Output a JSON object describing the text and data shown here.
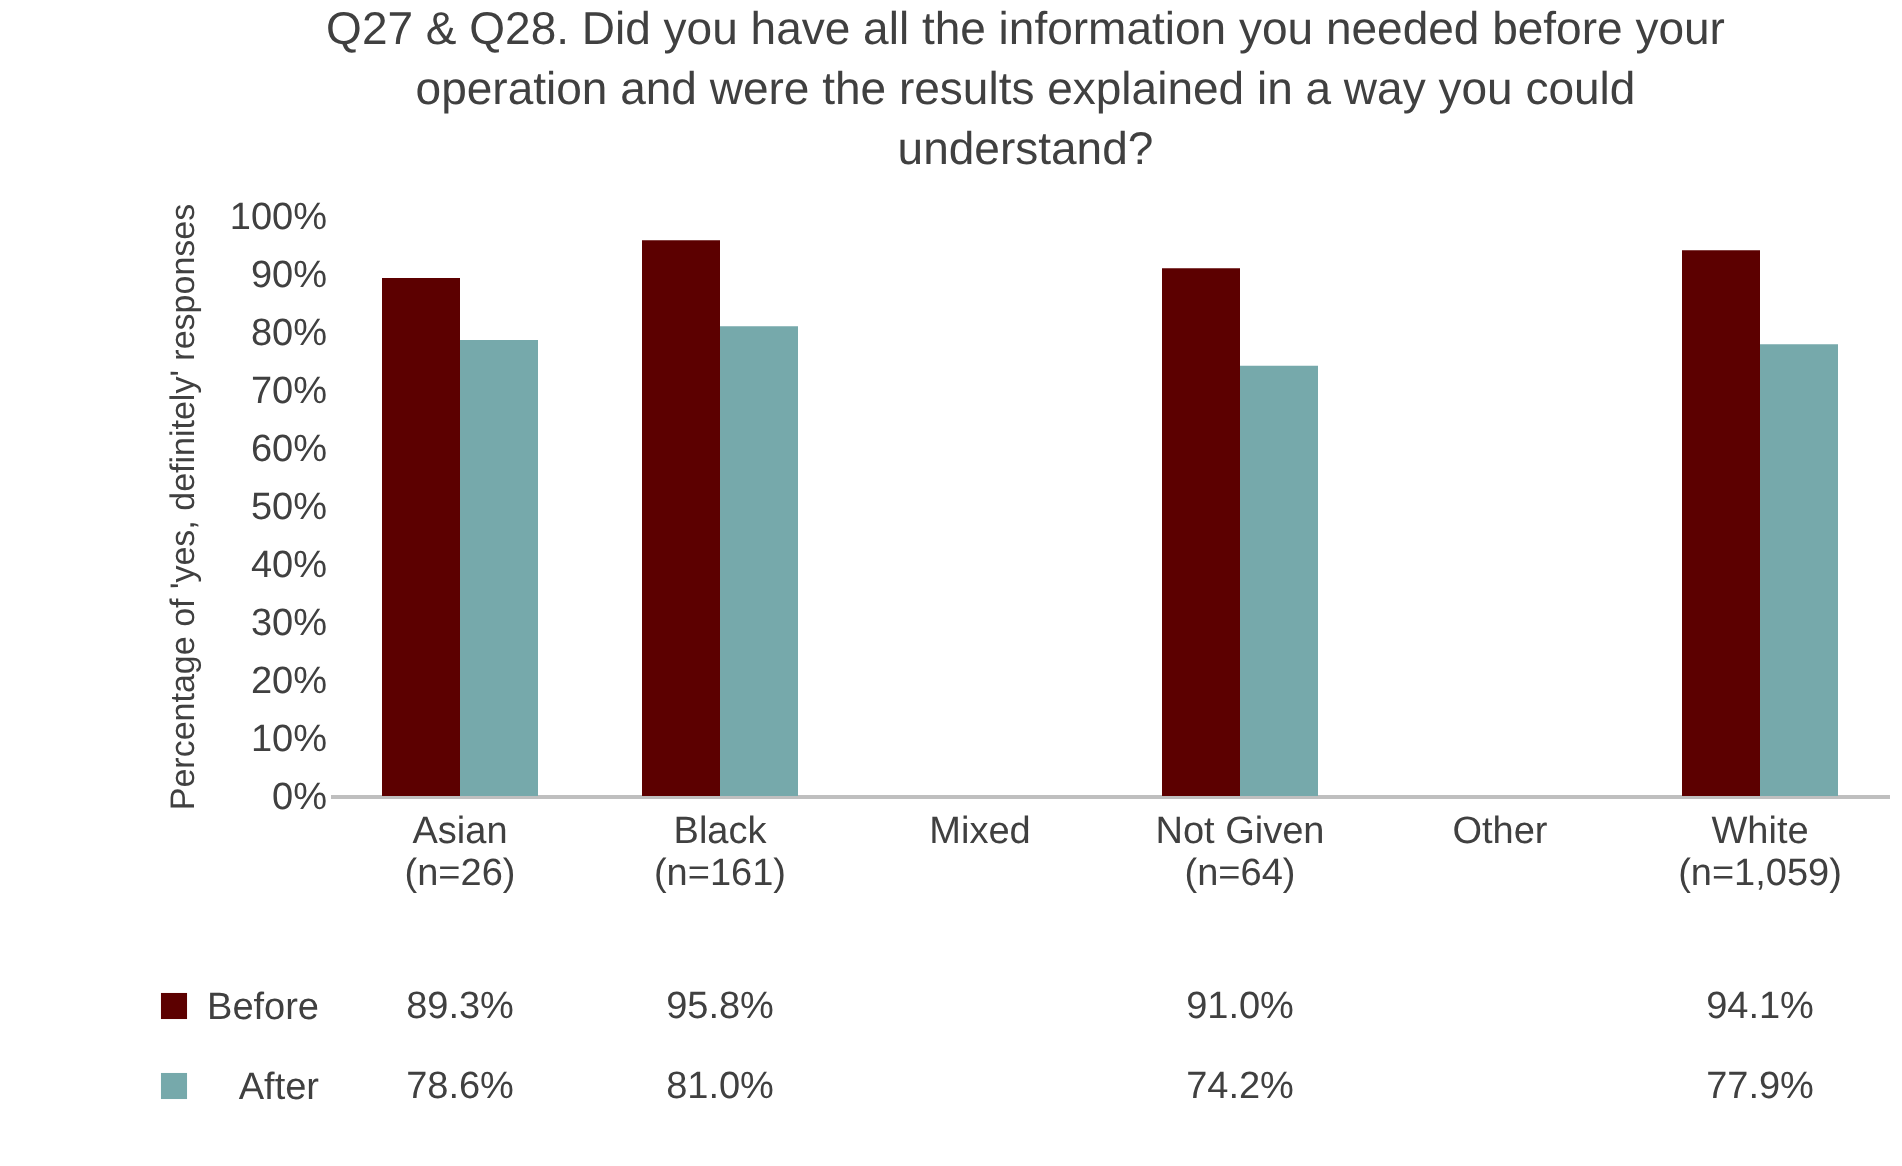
{
  "chart_data": {
    "type": "bar",
    "title": "Q27 & Q28. Did you have all the information you needed before your operation and were the results explained in a way you could understand?",
    "ylabel": "Percentage of 'yes, definitely' responses",
    "categories": [
      "Asian\n(n=26)",
      "Black\n(n=161)",
      "Mixed",
      "Not Given\n(n=64)",
      "Other",
      "White\n(n=1,059)"
    ],
    "series": [
      {
        "name": "Before",
        "color": "#5c0000",
        "values": [
          89.3,
          95.8,
          null,
          91.0,
          null,
          94.1
        ],
        "value_labels": [
          "89.3%",
          "95.8%",
          null,
          "91.0%",
          null,
          "94.1%"
        ]
      },
      {
        "name": "After",
        "color": "#76a9ab",
        "values": [
          78.6,
          81.0,
          null,
          74.2,
          null,
          77.9
        ],
        "value_labels": [
          "78.6%",
          "81.0%",
          null,
          "74.2%",
          null,
          "77.9%"
        ]
      }
    ],
    "ylim": [
      0,
      100
    ],
    "yticks": [
      {
        "value": 0,
        "label": "0%"
      },
      {
        "value": 10,
        "label": "10%"
      },
      {
        "value": 20,
        "label": "20%"
      },
      {
        "value": 30,
        "label": "30%"
      },
      {
        "value": 40,
        "label": "40%"
      },
      {
        "value": 50,
        "label": "50%"
      },
      {
        "value": 60,
        "label": "60%"
      },
      {
        "value": 70,
        "label": "70%"
      },
      {
        "value": 80,
        "label": "80%"
      },
      {
        "value": 90,
        "label": "90%"
      },
      {
        "value": 100,
        "label": "100%"
      }
    ],
    "grid": false,
    "legend": "bottom left"
  }
}
